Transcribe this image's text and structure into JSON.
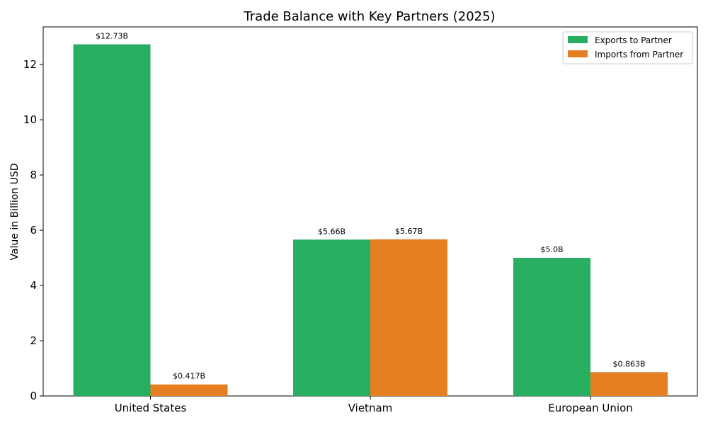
{
  "chart_data": {
    "type": "bar",
    "title": "Trade Balance with Key Partners (2025)",
    "xlabel": "",
    "ylabel": "Value in Billion USD",
    "ylim": [
      0,
      13.36
    ],
    "yticks": [
      0,
      2,
      4,
      6,
      8,
      10,
      12
    ],
    "categories": [
      "United States",
      "Vietnam",
      "European Union"
    ],
    "series": [
      {
        "name": "Exports to Partner",
        "color": "#27ae60",
        "values": [
          12.73,
          5.66,
          5.0
        ],
        "labels": [
          "$12.73B",
          "$5.66B",
          "$5.0B"
        ]
      },
      {
        "name": "Imports from Partner",
        "color": "#e67e22",
        "values": [
          0.417,
          5.67,
          0.863
        ],
        "labels": [
          "$0.417B",
          "$5.67B",
          "$0.863B"
        ]
      }
    ],
    "legend_position": "top-right",
    "grid": false
  }
}
